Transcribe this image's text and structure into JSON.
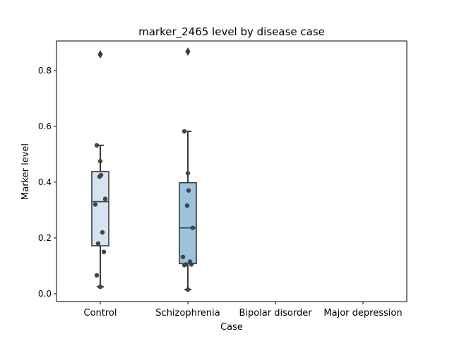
{
  "chart_data": {
    "type": "box",
    "title": "marker_2465 level by disease case",
    "xlabel": "Case",
    "ylabel": "Marker level",
    "categories": [
      "Control",
      "Schizophrenia",
      "Bipolar disorder",
      "Major depression"
    ],
    "ylim": [
      -0.028,
      0.906
    ],
    "yticks": [
      0.0,
      0.2,
      0.4,
      0.6,
      0.8
    ],
    "ytick_labels": [
      "0.0",
      "0.2",
      "0.4",
      "0.6",
      "0.8"
    ],
    "grid": false,
    "legend": "none",
    "boxes": [
      {
        "category": "Control",
        "whisker_low": 0.025,
        "q1": 0.172,
        "median": 0.33,
        "q3": 0.438,
        "whisker_high": 0.532,
        "outliers": [
          0.858
        ],
        "color": "#d6e3f1"
      },
      {
        "category": "Schizophrenia",
        "whisker_low": 0.015,
        "q1": 0.108,
        "median": 0.236,
        "q3": 0.398,
        "whisker_high": 0.582,
        "outliers": [
          0.868
        ],
        "color": "#9dc3dc"
      }
    ],
    "points": [
      {
        "category": "Control",
        "values": [
          0.025,
          0.066,
          0.15,
          0.18,
          0.22,
          0.32,
          0.34,
          0.42,
          0.425,
          0.475,
          0.532
        ]
      },
      {
        "category": "Schizophrenia",
        "values": [
          0.015,
          0.103,
          0.105,
          0.105,
          0.115,
          0.132,
          0.236,
          0.316,
          0.37,
          0.432,
          0.582
        ]
      }
    ]
  }
}
